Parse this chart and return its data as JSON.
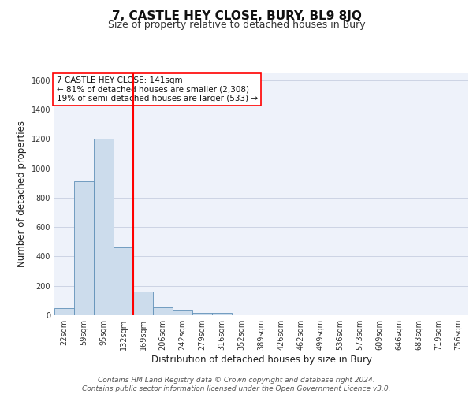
{
  "title": "7, CASTLE HEY CLOSE, BURY, BL9 8JQ",
  "subtitle": "Size of property relative to detached houses in Bury",
  "xlabel": "Distribution of detached houses by size in Bury",
  "ylabel": "Number of detached properties",
  "footer_line1": "Contains HM Land Registry data © Crown copyright and database right 2024.",
  "footer_line2": "Contains public sector information licensed under the Open Government Licence v3.0.",
  "categories": [
    "22sqm",
    "59sqm",
    "95sqm",
    "132sqm",
    "169sqm",
    "206sqm",
    "242sqm",
    "279sqm",
    "316sqm",
    "352sqm",
    "389sqm",
    "426sqm",
    "462sqm",
    "499sqm",
    "536sqm",
    "573sqm",
    "609sqm",
    "646sqm",
    "683sqm",
    "719sqm",
    "756sqm"
  ],
  "values": [
    50,
    910,
    1200,
    460,
    160,
    55,
    30,
    15,
    15,
    0,
    0,
    0,
    0,
    0,
    0,
    0,
    0,
    0,
    0,
    0,
    0
  ],
  "bar_color": "#ccdcec",
  "bar_edge_color": "#6090b8",
  "vline_x": 3.5,
  "vline_color": "red",
  "annotation_text": "7 CASTLE HEY CLOSE: 141sqm\n← 81% of detached houses are smaller (2,308)\n19% of semi-detached houses are larger (533) →",
  "annotation_box_color": "white",
  "annotation_box_edge": "red",
  "ylim": [
    0,
    1650
  ],
  "yticks": [
    0,
    200,
    400,
    600,
    800,
    1000,
    1200,
    1400,
    1600
  ],
  "bg_color": "#eef2fa",
  "grid_color": "#ccd4e4",
  "title_fontsize": 11,
  "subtitle_fontsize": 9,
  "axis_label_fontsize": 8.5,
  "tick_fontsize": 7,
  "annotation_fontsize": 7.5,
  "footer_fontsize": 6.5
}
